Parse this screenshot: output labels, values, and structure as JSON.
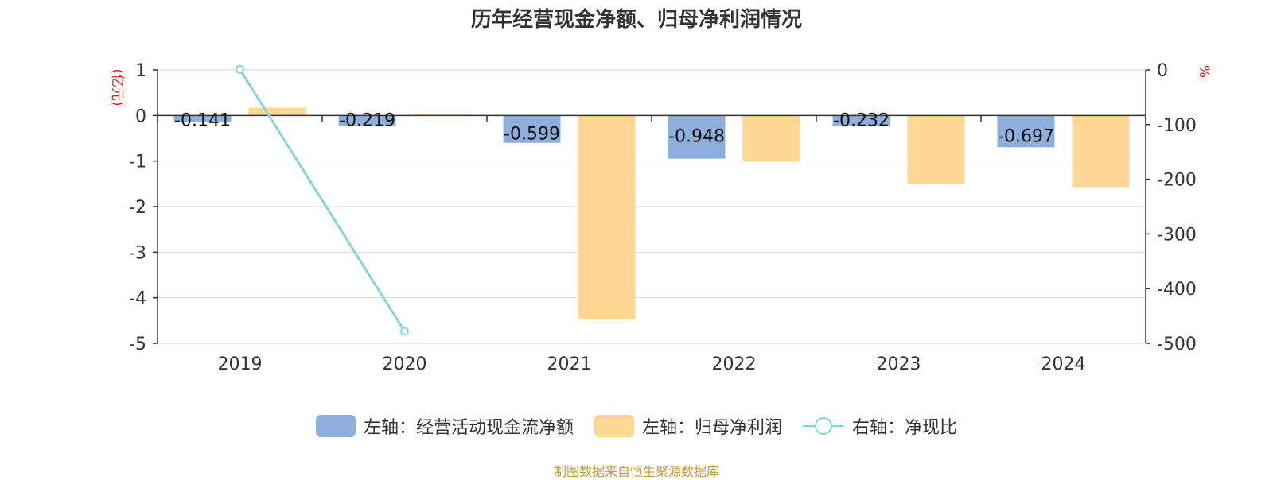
{
  "title": "历年经营现金净额、归母净利润情况",
  "source_note": "制图数据来自恒生聚源数据库",
  "colors": {
    "cash_flow": "#8eaedc",
    "net_profit": "#ffd795",
    "ratio_line": "#88d4dc",
    "axis_unit_red": "#e02020",
    "grid": "#d5d5d5",
    "axis": "#333333"
  },
  "legend": [
    {
      "label": "左轴：经营活动现金流净额",
      "kind": "bar",
      "color": "#8eaedc"
    },
    {
      "label": "左轴：归母净利润",
      "kind": "bar",
      "color": "#ffd795"
    },
    {
      "label": "右轴：净现比",
      "kind": "line",
      "color": "#88d4dc"
    }
  ],
  "chart_data": {
    "type": "bar",
    "title": "历年经营现金净额、归母净利润情况",
    "categories": [
      "2019",
      "2020",
      "2021",
      "2022",
      "2023",
      "2024"
    ],
    "y_left": {
      "label": "(亿元)",
      "range": [
        -5,
        1
      ],
      "ticks": [
        1,
        0,
        -1,
        -2,
        -3,
        -4,
        -5
      ]
    },
    "y_right": {
      "label": "%",
      "range": [
        -500,
        0
      ],
      "ticks": [
        0,
        -100,
        -200,
        -300,
        -400,
        -500
      ]
    },
    "series": [
      {
        "name": "左轴：经营活动现金流净额",
        "axis": "left",
        "type": "bar",
        "values": [
          -0.141,
          -0.219,
          -0.599,
          -0.948,
          -0.232,
          -0.697
        ],
        "labels": [
          "-0.141",
          "-0.219",
          "-0.599",
          "-0.948",
          "-0.232",
          "-0.697"
        ]
      },
      {
        "name": "左轴：归母净利润",
        "axis": "left",
        "type": "bar",
        "values": [
          0.17,
          0.04,
          -4.46,
          -1.01,
          -1.5,
          -1.57
        ]
      },
      {
        "name": "右轴：净现比",
        "axis": "right",
        "type": "line",
        "values": [
          1,
          -478,
          null,
          null,
          null,
          null
        ]
      }
    ],
    "grid": true,
    "legend_position": "bottom"
  }
}
